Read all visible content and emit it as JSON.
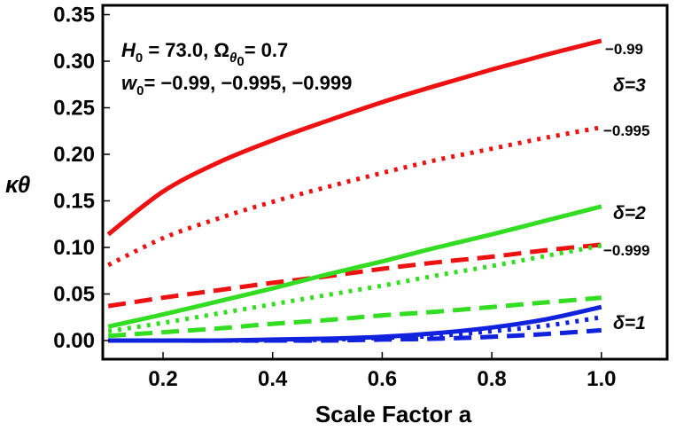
{
  "chart_data": {
    "type": "line",
    "xlabel": "Scale Factor a",
    "ylabel": "κθ",
    "xlim": [
      0.09,
      1.12
    ],
    "ylim": [
      -0.02,
      0.36
    ],
    "x_ticks": [
      "0.2",
      "0.4",
      "0.6",
      "0.8",
      "1.0"
    ],
    "x_tick_values": [
      0.2,
      0.4,
      0.6,
      0.8,
      1.0
    ],
    "y_ticks": [
      "0.00",
      "0.05",
      "0.10",
      "0.15",
      "0.20",
      "0.25",
      "0.30",
      "0.35"
    ],
    "y_tick_values": [
      0.0,
      0.05,
      0.1,
      0.15,
      0.2,
      0.25,
      0.3,
      0.35
    ],
    "grid": false,
    "annotations": {
      "line1_prefix": "H",
      "line1_sub": "0",
      "line1_mid": " = 73.0, Ω",
      "line1_sub2": "θ",
      "line1_sub3": "0",
      "line1_end": "= 0.7",
      "line2_prefix": "w",
      "line2_sub": "0",
      "line2_end": "= −0.99, −0.995, −0.999"
    },
    "w_labels": [
      "−0.99",
      "−0.995",
      "−0.999"
    ],
    "delta_labels": [
      {
        "text": "δ=3",
        "color": "#ee1111"
      },
      {
        "text": "δ=2",
        "color": "#33dd22"
      },
      {
        "text": "δ=1",
        "color": "#1122dd"
      }
    ],
    "colors": {
      "delta3": "#ee1111",
      "delta2": "#33dd22",
      "delta1": "#1122dd"
    },
    "x": [
      0.1,
      0.2,
      0.3,
      0.4,
      0.5,
      0.6,
      0.7,
      0.8,
      0.9,
      1.0
    ],
    "series": [
      {
        "delta": "3",
        "w0": "-0.99",
        "style": "solid",
        "color": "#ee1111",
        "values": [
          0.114,
          0.16,
          0.191,
          0.215,
          0.236,
          0.256,
          0.274,
          0.291,
          0.307,
          0.322
        ]
      },
      {
        "delta": "3",
        "w0": "-0.995",
        "style": "dotted",
        "color": "#ee1111",
        "values": [
          0.081,
          0.11,
          0.131,
          0.149,
          0.165,
          0.18,
          0.194,
          0.206,
          0.218,
          0.229
        ]
      },
      {
        "delta": "3",
        "w0": "-0.999",
        "style": "dashed",
        "color": "#ee1111",
        "values": [
          0.037,
          0.046,
          0.054,
          0.062,
          0.069,
          0.077,
          0.084,
          0.09,
          0.097,
          0.103
        ]
      },
      {
        "delta": "2",
        "w0": "-0.99",
        "style": "solid",
        "color": "#33dd22",
        "values": [
          0.015,
          0.028,
          0.042,
          0.056,
          0.071,
          0.085,
          0.1,
          0.114,
          0.129,
          0.144
        ]
      },
      {
        "delta": "2",
        "w0": "-0.995",
        "style": "dotted",
        "color": "#33dd22",
        "values": [
          0.01,
          0.019,
          0.029,
          0.039,
          0.049,
          0.059,
          0.07,
          0.08,
          0.091,
          0.102
        ]
      },
      {
        "delta": "2",
        "w0": "-0.999",
        "style": "dashed",
        "color": "#33dd22",
        "values": [
          0.005,
          0.009,
          0.013,
          0.018,
          0.022,
          0.027,
          0.031,
          0.036,
          0.041,
          0.046
        ]
      },
      {
        "delta": "1",
        "w0": "-0.99",
        "style": "solid",
        "color": "#1122dd",
        "values": [
          0.0,
          0.0,
          0.0,
          0.001,
          0.002,
          0.004,
          0.008,
          0.014,
          0.023,
          0.036
        ]
      },
      {
        "delta": "1",
        "w0": "-0.995",
        "style": "dotted",
        "color": "#1122dd",
        "values": [
          0.0,
          0.0,
          0.0,
          0.0,
          0.001,
          0.003,
          0.005,
          0.01,
          0.016,
          0.025
        ]
      },
      {
        "delta": "1",
        "w0": "-0.999",
        "style": "dashed",
        "color": "#1122dd",
        "values": [
          0.0,
          0.0,
          0.0,
          0.0,
          0.0,
          0.001,
          0.002,
          0.004,
          0.007,
          0.011
        ]
      }
    ]
  }
}
